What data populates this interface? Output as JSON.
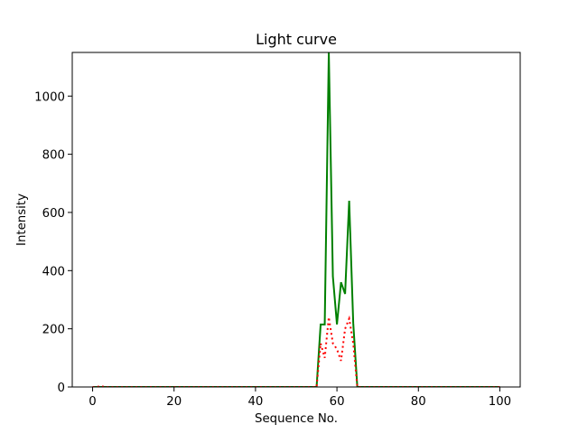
{
  "chart_data": {
    "type": "line",
    "title": "Light curve",
    "xlabel": "Sequence No.",
    "ylabel": "Intensity",
    "xlim": [
      -5,
      105
    ],
    "ylim": [
      0,
      1150
    ],
    "x_ticks": [
      0,
      20,
      40,
      60,
      80,
      100
    ],
    "y_ticks": [
      0,
      200,
      400,
      600,
      800,
      1000
    ],
    "grid": false,
    "legend": "none",
    "x": [
      0,
      1,
      2,
      3,
      4,
      5,
      6,
      7,
      8,
      9,
      10,
      11,
      12,
      13,
      14,
      15,
      16,
      17,
      18,
      19,
      20,
      21,
      22,
      23,
      24,
      25,
      26,
      27,
      28,
      29,
      30,
      31,
      32,
      33,
      34,
      35,
      36,
      37,
      38,
      39,
      40,
      41,
      42,
      43,
      44,
      45,
      46,
      47,
      48,
      49,
      50,
      51,
      52,
      53,
      54,
      55,
      56,
      57,
      58,
      59,
      60,
      61,
      62,
      63,
      64,
      65,
      66,
      67,
      68,
      69,
      70,
      71,
      72,
      73,
      74,
      75,
      76,
      77,
      78,
      79,
      80,
      81,
      82,
      83,
      84,
      85,
      86,
      87,
      88,
      89,
      90,
      91,
      92,
      93,
      94,
      95,
      96,
      97,
      98,
      99,
      100
    ],
    "series": [
      {
        "color": "#008000",
        "linestyle": "solid",
        "values": [
          0,
          0,
          0,
          0,
          0,
          0,
          0,
          0,
          0,
          0,
          0,
          0,
          0,
          0,
          0,
          0,
          0,
          0,
          0,
          0,
          0,
          0,
          0,
          0,
          0,
          0,
          0,
          0,
          0,
          0,
          0,
          0,
          0,
          0,
          0,
          0,
          0,
          0,
          0,
          0,
          0,
          0,
          0,
          0,
          0,
          0,
          0,
          0,
          0,
          0,
          0,
          0,
          0,
          0,
          0,
          0,
          215,
          215,
          1150,
          380,
          215,
          360,
          320,
          640,
          220,
          0,
          0,
          0,
          0,
          0,
          0,
          0,
          0,
          0,
          0,
          0,
          0,
          0,
          0,
          0,
          0,
          0,
          0,
          0,
          0,
          0,
          0,
          0,
          0,
          0,
          0,
          0,
          0,
          0,
          0,
          0,
          0,
          0,
          0,
          0,
          0
        ]
      },
      {
        "color": "#ff0000",
        "linestyle": "dotted",
        "values": [
          0,
          0,
          3,
          0,
          0,
          0,
          0,
          0,
          0,
          0,
          0,
          0,
          0,
          0,
          0,
          0,
          0,
          0,
          0,
          0,
          0,
          0,
          0,
          0,
          0,
          0,
          0,
          0,
          0,
          0,
          0,
          0,
          0,
          0,
          0,
          0,
          0,
          0,
          0,
          0,
          0,
          0,
          0,
          0,
          0,
          0,
          0,
          0,
          0,
          0,
          0,
          0,
          0,
          0,
          0,
          0,
          150,
          100,
          240,
          150,
          130,
          90,
          200,
          235,
          150,
          0,
          0,
          0,
          0,
          0,
          0,
          0,
          0,
          0,
          0,
          0,
          0,
          0,
          0,
          0,
          0,
          0,
          0,
          0,
          0,
          0,
          0,
          0,
          0,
          0,
          0,
          0,
          0,
          0,
          0,
          0,
          0,
          0,
          0,
          0,
          0
        ]
      }
    ]
  }
}
